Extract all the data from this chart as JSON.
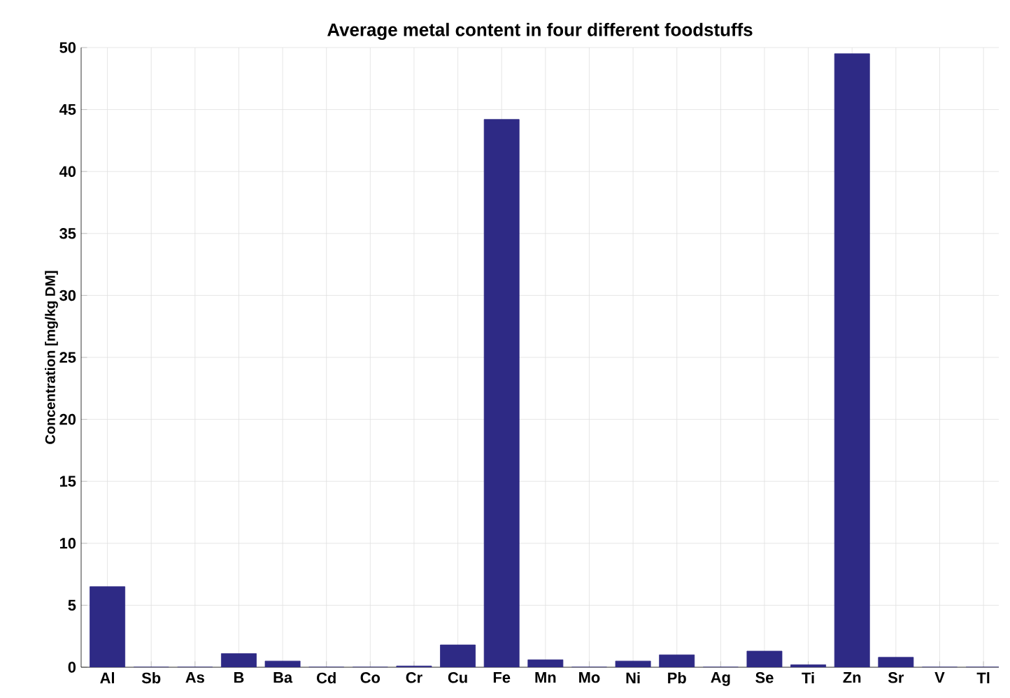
{
  "chart_data": {
    "type": "bar",
    "title": "Average metal content in four different foodstuffs",
    "ylabel": "Concentration [mg/kg DM]",
    "categories": [
      "Al",
      "Sb",
      "As",
      "B",
      "Ba",
      "Cd",
      "Co",
      "Cr",
      "Cu",
      "Fe",
      "Mn",
      "Mo",
      "Ni",
      "Pb",
      "Ag",
      "Se",
      "Ti",
      "Zn",
      "Sr",
      "V",
      "Tl"
    ],
    "values": [
      6.5,
      0,
      0,
      1.1,
      0.5,
      0,
      0,
      0.1,
      1.8,
      44.2,
      0.6,
      0,
      0.5,
      1,
      0,
      1.3,
      0.2,
      49.5,
      0.8,
      0,
      0
    ],
    "color": "#2e2a85",
    "ylim": [
      0,
      50
    ],
    "yticks": [
      0,
      5,
      10,
      15,
      20,
      25,
      30,
      35,
      40,
      45,
      50
    ],
    "grid": true
  }
}
